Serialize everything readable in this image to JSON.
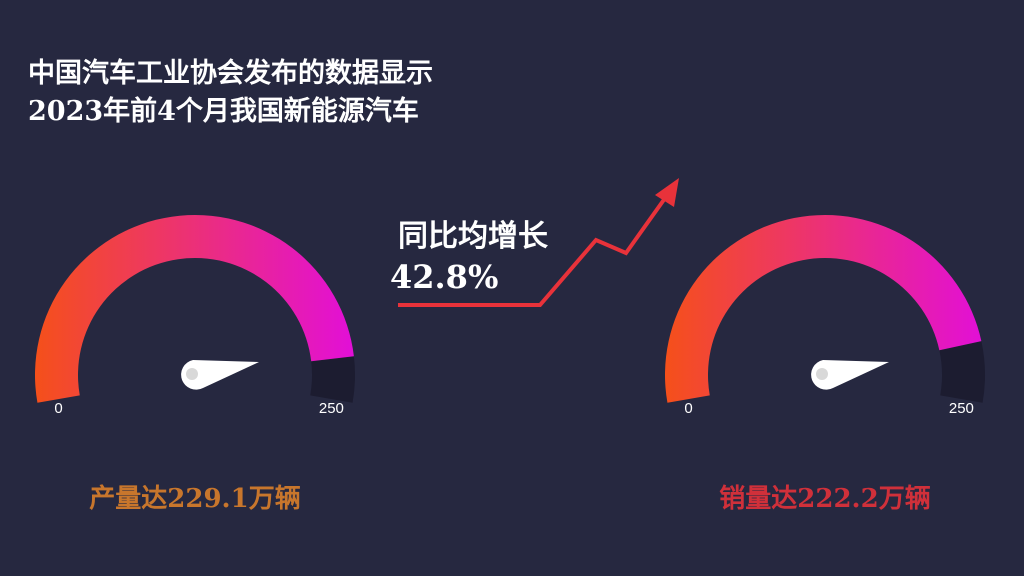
{
  "title_lines": [
    "中国汽车工业协会发布的数据显示",
    "2023年前4个月我国新能源汽车"
  ],
  "annotation": {
    "text": "同比均增长",
    "label": "42.8%"
  },
  "chart_data": [
    {
      "type": "gauge",
      "values": [
        229.1
      ],
      "value_labels": [
        "产量达229.1万辆"
      ],
      "ylim": [
        0,
        250
      ],
      "yticks": [
        0,
        250
      ],
      "colors": [
        "#f5501a",
        "#e20fd8"
      ],
      "label_color": "#c8762c"
    },
    {
      "type": "gauge",
      "values": [
        222.2
      ],
      "value_labels": [
        "销量达222.2万辆"
      ],
      "ylim": [
        0,
        250
      ],
      "yticks": [
        0,
        250
      ],
      "colors": [
        "#f5501a",
        "#e20fd8"
      ],
      "label_color": "#d0303a"
    }
  ]
}
